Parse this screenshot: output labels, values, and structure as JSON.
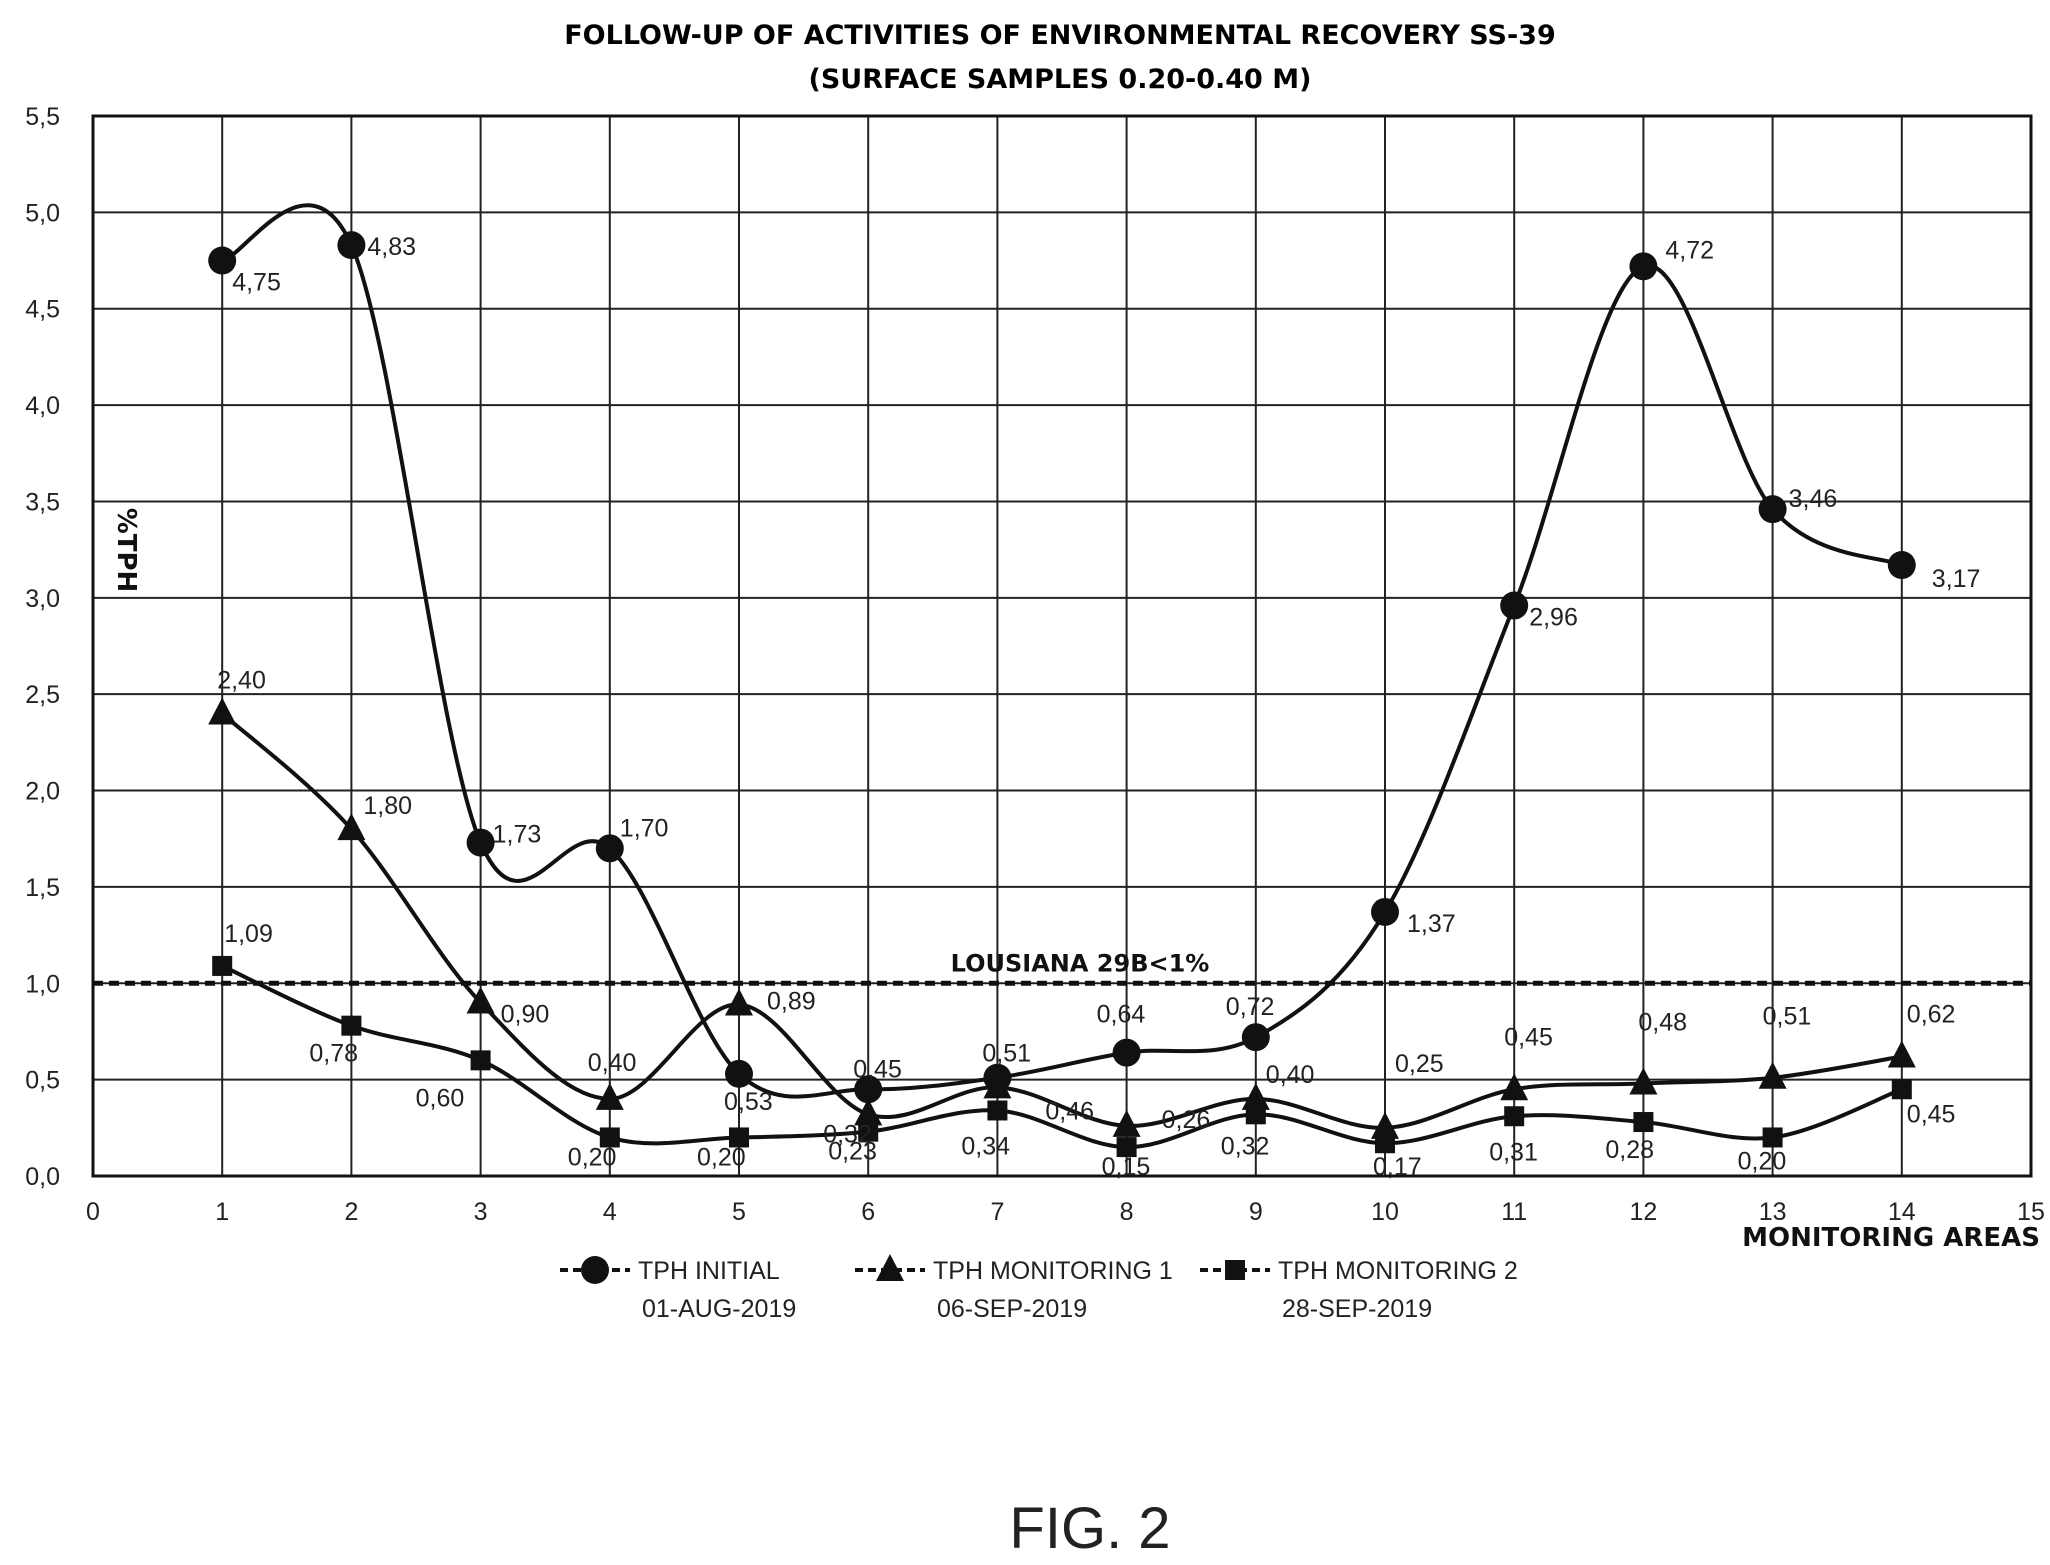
{
  "figure_label": "FIG. 2",
  "chart_data": {
    "type": "line",
    "title": "FOLLOW-UP OF ACTIVITIES OF ENVIRONMENTAL RECOVERY SS-39",
    "subtitle": "(SURFACE SAMPLES 0.20-0.40 M)",
    "xlabel": "MONITORING AREAS",
    "ylabel": "%TPH",
    "xlim": [
      0,
      15
    ],
    "ylim": [
      0,
      5.5
    ],
    "grid": true,
    "legend_position": "bottom",
    "x_ticks": [
      "0",
      "1",
      "2",
      "3",
      "4",
      "5",
      "6",
      "7",
      "8",
      "9",
      "10",
      "11",
      "12",
      "13",
      "14",
      "15"
    ],
    "y_ticks": [
      "0,0",
      "0,5",
      "1,0",
      "1,5",
      "2,0",
      "2,5",
      "3,0",
      "3,5",
      "4,0",
      "4,5",
      "5,0",
      "5,5"
    ],
    "x": [
      1,
      2,
      3,
      4,
      5,
      6,
      7,
      8,
      9,
      10,
      11,
      12,
      13,
      14
    ],
    "reference_line": {
      "value": 1.0,
      "label": "LOUSIANA 29B<1%"
    },
    "series": [
      {
        "name": "TPH INITIAL",
        "date": "01-AUG-2019",
        "marker": "circle",
        "values": [
          4.75,
          4.83,
          1.73,
          1.7,
          0.53,
          0.45,
          0.51,
          0.64,
          0.72,
          1.37,
          2.96,
          4.72,
          3.46,
          3.17
        ],
        "labels": [
          "4,75",
          "4,83",
          "1,73",
          "1,70",
          "0,53",
          "0,45",
          "0,51",
          "0,64",
          "0,72",
          "1,37",
          "2,96",
          "4,72",
          "3,46",
          "3,17"
        ]
      },
      {
        "name": "TPH MONITORING 1",
        "date": "06-SEP-2019",
        "marker": "triangle",
        "values": [
          2.4,
          1.8,
          0.9,
          0.4,
          0.89,
          0.32,
          0.46,
          0.26,
          0.4,
          0.25,
          0.45,
          0.48,
          0.51,
          0.62
        ],
        "labels": [
          "2,40",
          "1,80",
          "0,90",
          "0,40",
          "0,89",
          "0,32",
          "0,46",
          "0,26",
          "0,40",
          "0,25",
          "0,45",
          "0,48",
          "0,51",
          "0,62"
        ]
      },
      {
        "name": "TPH MONITORING 2",
        "date": "28-SEP-2019",
        "marker": "square",
        "values": [
          1.09,
          0.78,
          0.6,
          0.2,
          0.2,
          0.23,
          0.34,
          0.15,
          0.32,
          0.17,
          0.31,
          0.28,
          0.2,
          0.45
        ],
        "labels": [
          "1,09",
          "0,78",
          "0,60",
          "0,20",
          "0,20",
          "0,23",
          "0,34",
          "0,15",
          "0,32",
          "0,17",
          "0,31",
          "0,28",
          "0,20",
          "0,45"
        ]
      }
    ]
  }
}
